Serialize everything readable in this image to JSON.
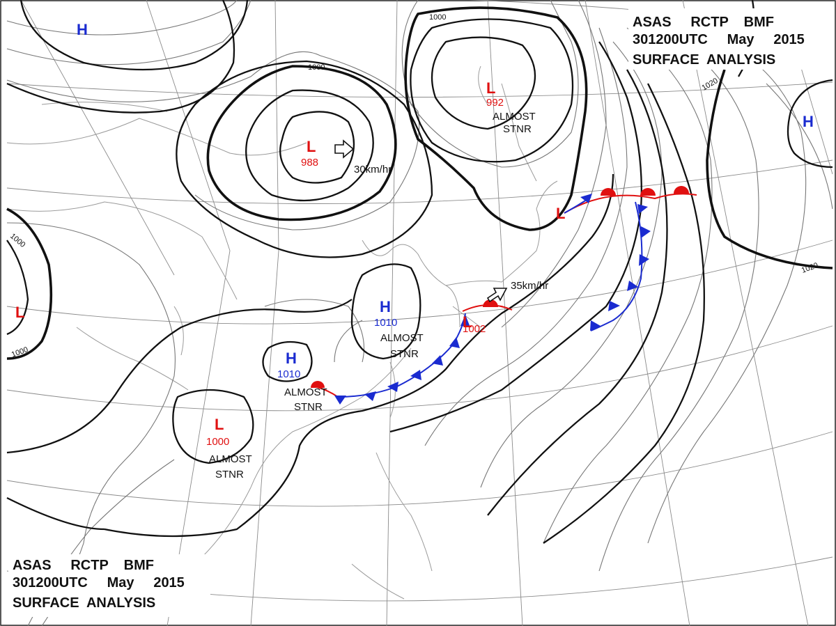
{
  "header_top": {
    "line1": "ASAS     RCTP    BMF",
    "line2": "301200UTC     May     2015",
    "line3": "SURFACE  ANALYSIS"
  },
  "header_bottom": {
    "line1": "ASAS     RCTP    BMF",
    "line2": "301200UTC     May     2015",
    "line3": "SURFACE  ANALYSIS"
  },
  "systems": [
    {
      "type": "H",
      "pressure": "",
      "note": "",
      "symbol_color": "#1a2bd0"
    },
    {
      "type": "L",
      "pressure": "988",
      "note": "",
      "symbol_color": "#e01010"
    },
    {
      "type": "L",
      "pressure": "992",
      "note": "ALMOST STNR",
      "symbol_color": "#e01010"
    },
    {
      "type": "H",
      "pressure": "",
      "note": "",
      "symbol_color": "#1a2bd0"
    },
    {
      "type": "L",
      "pressure": "",
      "note": "",
      "symbol_color": "#e01010"
    },
    {
      "type": "L",
      "pressure": "",
      "note": "",
      "symbol_color": "#e01010"
    },
    {
      "type": "H",
      "pressure": "1010",
      "note": "ALMOST STNR",
      "symbol_color": "#1a2bd0"
    },
    {
      "type": "H",
      "pressure": "1010",
      "note": "ALMOST STNR",
      "symbol_color": "#1a2bd0"
    },
    {
      "type": "L",
      "pressure": "1000",
      "note": "ALMOST STNR",
      "symbol_color": "#e01010"
    },
    {
      "type": "L",
      "pressure": "1002",
      "note": "",
      "symbol_color": "#e01010"
    }
  ],
  "motion_labels": {
    "low_988": "30km/hr",
    "low_1002": "35km/hr"
  },
  "isobar_labels": {
    "a": "1000",
    "b": "1000",
    "c": "1000",
    "d": "1000",
    "e": "1020",
    "f": "1020"
  },
  "colors": {
    "low": "#e01010",
    "high": "#1a2bd0",
    "cold_front": "#1a2bd0",
    "warm_front": "#e01010",
    "isobar": "#111111",
    "graticule": "#8a8a8a",
    "coast": "#999999"
  }
}
